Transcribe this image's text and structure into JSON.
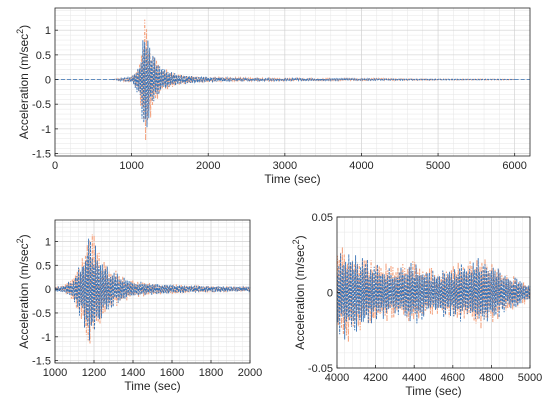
{
  "colors": {
    "series_a": "#f4a582",
    "series_b": "#3a74b6",
    "axis": "#262626"
  },
  "chart_data": [
    {
      "type": "line",
      "panel": "top",
      "xlabel": "Time (sec)",
      "ylabel": "Acceleration (m/sec",
      "ylabel_sup": "2",
      "ylabel_close": ")",
      "xlim": [
        0,
        6200
      ],
      "ylim": [
        -1.55,
        1.45
      ],
      "xticks": [
        0,
        1000,
        2000,
        3000,
        4000,
        5000,
        6000
      ],
      "xtick_labels": [
        "0",
        "1000",
        "2000",
        "3000",
        "4000",
        "5000",
        "6000"
      ],
      "yticks": [
        1,
        0.5,
        0,
        -0.5,
        -1,
        -1.5
      ],
      "ytick_labels": [
        "1",
        "0.5",
        "0",
        "-0.5",
        "-1",
        "-1.5"
      ],
      "grid": true,
      "series_style": "dash-dot overlaid pair",
      "envelope": {
        "t": [
          750,
          1000,
          1100,
          1150,
          1180,
          1210,
          1260,
          1320,
          1400,
          1600,
          1800,
          2000,
          2500,
          3000,
          4000,
          5000,
          6000
        ],
        "amp": [
          0.0,
          0.06,
          0.35,
          1.0,
          1.35,
          1.1,
          0.65,
          0.45,
          0.25,
          0.12,
          0.08,
          0.05,
          0.03,
          0.025,
          0.02,
          0.01,
          0.005
        ]
      }
    },
    {
      "type": "line",
      "panel": "bottom-left",
      "xlabel": "Time (sec)",
      "ylabel": "Acceleration (m/sec",
      "ylabel_sup": "2",
      "ylabel_close": ")",
      "xlim": [
        1000,
        2000
      ],
      "ylim": [
        -1.55,
        1.45
      ],
      "xticks": [
        1000,
        1200,
        1400,
        1600,
        1800,
        2000
      ],
      "xtick_labels": [
        "1000",
        "1200",
        "1400",
        "1600",
        "1800",
        "2000"
      ],
      "yticks": [
        1,
        0.5,
        0,
        -0.5,
        -1,
        -1.5
      ],
      "ytick_labels": [
        "1",
        "0.5",
        "0",
        "-0.5",
        "-1",
        "-1.5"
      ],
      "grid": true,
      "series_style": "dash-dot overlaid pair",
      "envelope": {
        "t": [
          1000,
          1050,
          1100,
          1130,
          1160,
          1180,
          1200,
          1230,
          1280,
          1340,
          1400,
          1500,
          1600,
          1700,
          1800,
          1900,
          2000
        ],
        "amp": [
          0.05,
          0.08,
          0.3,
          0.6,
          1.1,
          1.35,
          1.1,
          0.75,
          0.45,
          0.28,
          0.18,
          0.12,
          0.1,
          0.08,
          0.07,
          0.06,
          0.05
        ]
      }
    },
    {
      "type": "line",
      "panel": "bottom-right",
      "xlabel": "Time (sec)",
      "ylabel": "Acceleration (m/sec",
      "ylabel_sup": "2",
      "ylabel_close": ")",
      "xlim": [
        4000,
        5000
      ],
      "ylim": [
        -0.05,
        0.05
      ],
      "xticks": [
        4000,
        4200,
        4400,
        4600,
        4800,
        5000
      ],
      "xtick_labels": [
        "4000",
        "4200",
        "4400",
        "4600",
        "4800",
        "5000"
      ],
      "yticks": [
        0.05,
        0,
        -0.05
      ],
      "ytick_labels": [
        "0.05",
        "0",
        "-0.05"
      ],
      "grid": true,
      "series_style": "dash-dot overlaid pair",
      "envelope": {
        "t": [
          4000,
          4050,
          4100,
          4200,
          4300,
          4400,
          4500,
          4600,
          4700,
          4750,
          4800,
          4900,
          5000
        ],
        "amp": [
          0.028,
          0.032,
          0.027,
          0.02,
          0.017,
          0.022,
          0.015,
          0.018,
          0.022,
          0.025,
          0.02,
          0.012,
          0.006
        ]
      }
    }
  ]
}
